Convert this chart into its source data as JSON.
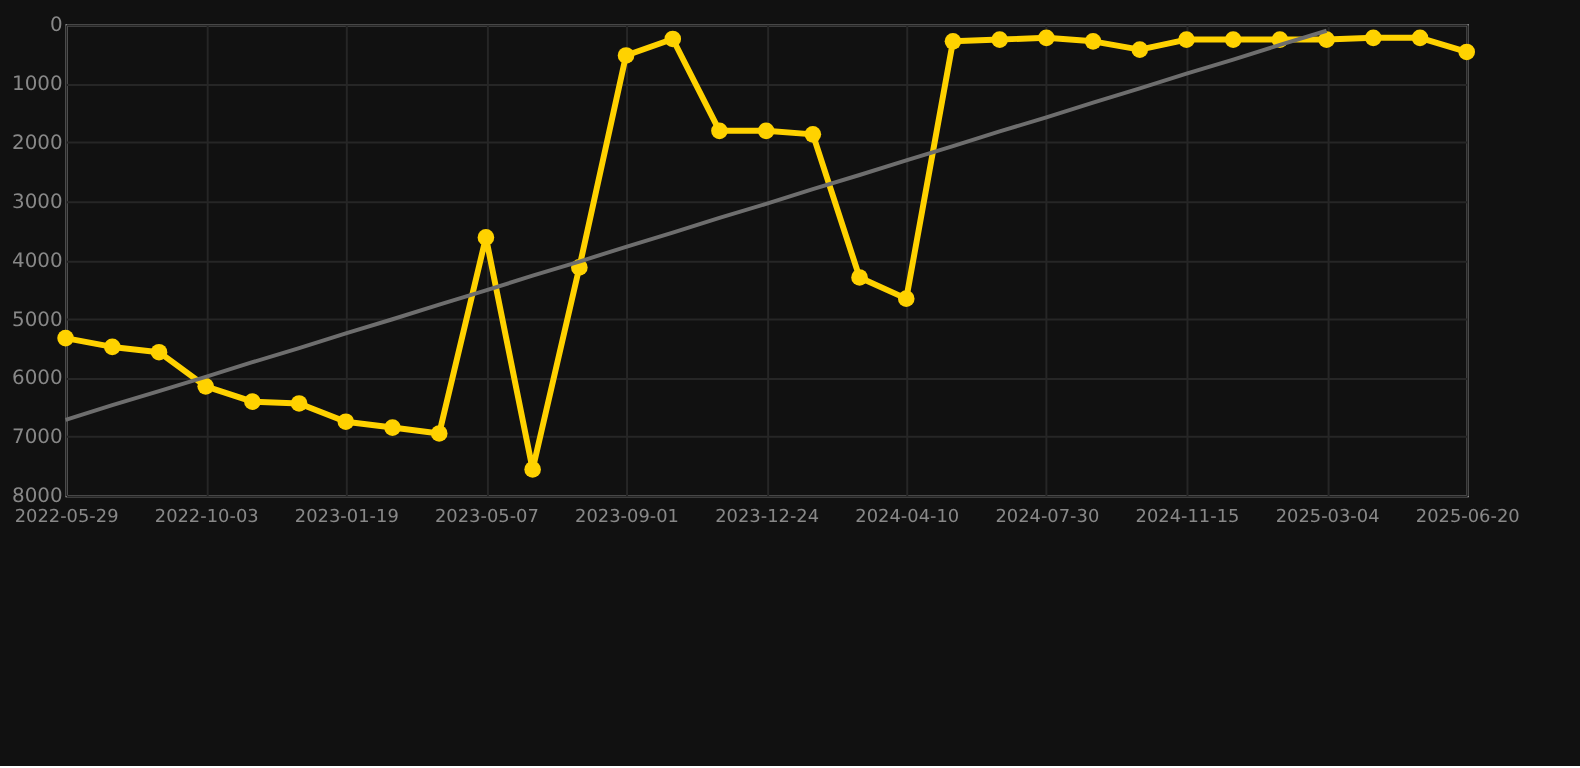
{
  "chart_data": {
    "type": "line",
    "categories": [
      "2022-05-29",
      null,
      null,
      "2022-10-03",
      null,
      null,
      "2023-01-19",
      null,
      null,
      "2023-05-07",
      null,
      null,
      "2023-09-01",
      null,
      null,
      "2023-12-24",
      null,
      null,
      "2024-04-10",
      null,
      null,
      "2024-07-30",
      null,
      null,
      "2024-11-15",
      null,
      null,
      "2025-03-04",
      null,
      null,
      "2025-06-20"
    ],
    "series": [
      {
        "color": "#ffd200",
        "marker": "circle",
        "values": [
          5330,
          5480,
          5570,
          6150,
          6410,
          6440,
          6750,
          6850,
          6950,
          3620,
          7560,
          4130,
          530,
          250,
          1810,
          1810,
          1870,
          4300,
          4660,
          290,
          260,
          230,
          290,
          430,
          260,
          260,
          260,
          260,
          230,
          230,
          470
        ]
      },
      {
        "color": "#6e6e6e",
        "marker": "none",
        "values": [
          6720,
          6470,
          6230,
          5990,
          5740,
          5500,
          5250,
          5010,
          4760,
          4520,
          4270,
          4030,
          3780,
          3540,
          3290,
          3050,
          2800,
          2560,
          2310,
          2070,
          1820,
          1580,
          1330,
          1090,
          840,
          600,
          350,
          110,
          null,
          null,
          null
        ]
      }
    ],
    "ylim": [
      8000,
      0
    ],
    "yticks": [
      0,
      1000,
      2000,
      3000,
      4000,
      5000,
      6000,
      7000,
      8000
    ],
    "grid": true
  }
}
